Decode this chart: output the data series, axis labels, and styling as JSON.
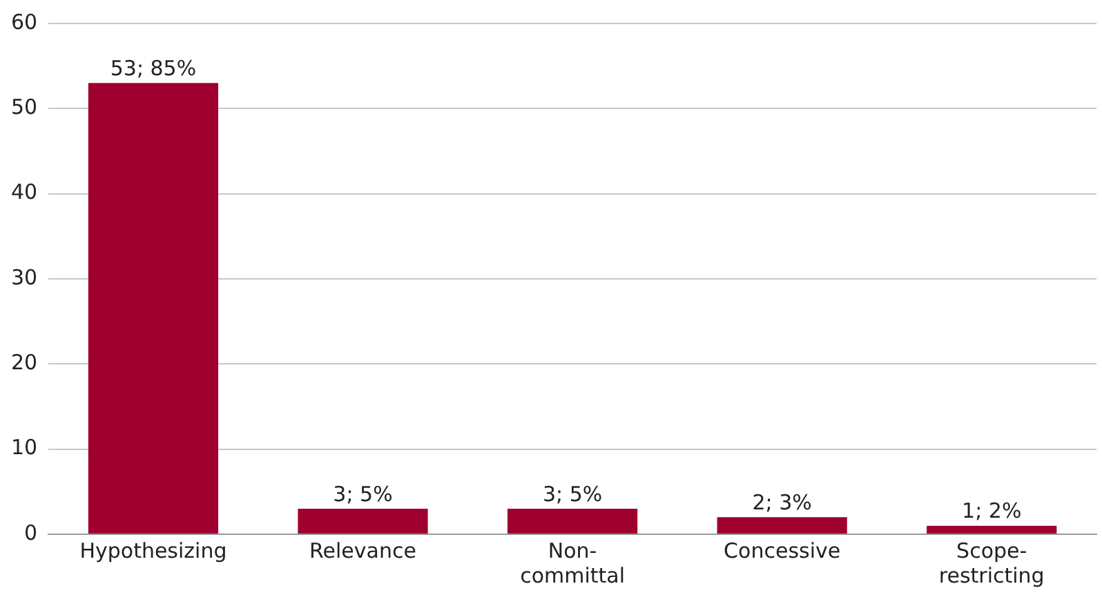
{
  "chart_data": {
    "type": "bar",
    "categories": [
      "Hypothesizing",
      "Relevance",
      "Non-committal",
      "Concessive",
      "Scope-restricting"
    ],
    "values": [
      53,
      3,
      3,
      2,
      1
    ],
    "color": "#a00030",
    "value_labels": [
      "53; 85%",
      "3; 5%",
      "3; 5%",
      "2; 3%",
      "1; 2%"
    ],
    "ylim": [
      0,
      60
    ],
    "yticks": [
      0,
      10,
      20,
      30,
      40,
      50,
      60
    ],
    "grid": "y",
    "legend": false
  }
}
